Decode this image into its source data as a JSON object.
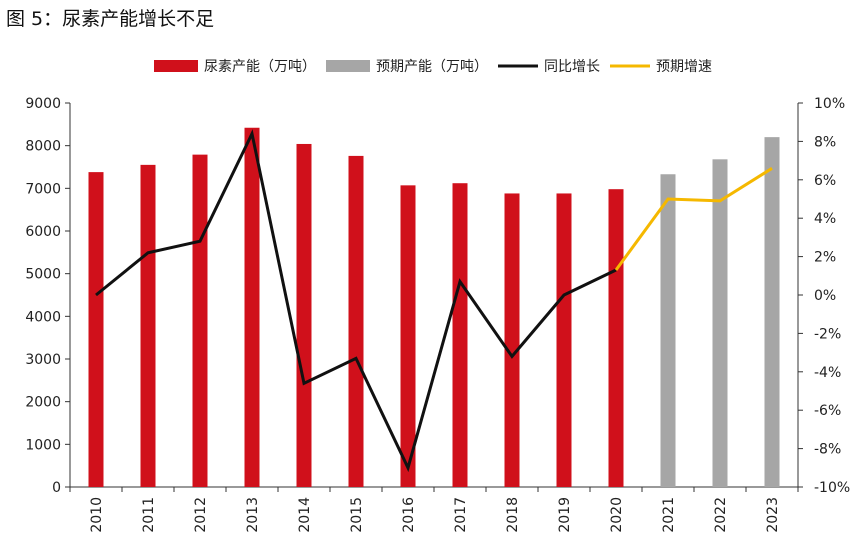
{
  "figure": {
    "title": "图 5：尿素产能增长不足"
  },
  "chart_data": {
    "type": "bar",
    "categories": [
      "2010",
      "2011",
      "2012",
      "2013",
      "2014",
      "2015",
      "2016",
      "2017",
      "2018",
      "2019",
      "2020",
      "2021",
      "2022",
      "2023"
    ],
    "series": [
      {
        "name": "尿素产能（万吨）",
        "kind": "bar",
        "axis": "left",
        "color": "#d0101b",
        "values": [
          7380,
          7550,
          7790,
          8420,
          8040,
          7760,
          7070,
          7120,
          6880,
          6880,
          6980,
          null,
          null,
          null
        ]
      },
      {
        "name": "预期产能（万吨）",
        "kind": "bar",
        "axis": "left",
        "color": "#a6a6a6",
        "values": [
          null,
          null,
          null,
          null,
          null,
          null,
          null,
          null,
          null,
          null,
          null,
          7330,
          7680,
          8200
        ]
      },
      {
        "name": "同比增长",
        "kind": "line",
        "axis": "right",
        "color": "#111111",
        "values": [
          0.0,
          2.2,
          2.8,
          8.4,
          -4.6,
          -3.3,
          -9.0,
          0.7,
          -3.2,
          0.0,
          1.3,
          null,
          null,
          null
        ]
      },
      {
        "name": "预期增速",
        "kind": "line",
        "axis": "right",
        "color": "#f5b800",
        "values": [
          null,
          null,
          null,
          null,
          null,
          null,
          null,
          null,
          null,
          null,
          1.3,
          5.0,
          4.9,
          6.6
        ]
      }
    ],
    "ylim_left": [
      0,
      9000
    ],
    "yticks_left": [
      0,
      1000,
      2000,
      3000,
      4000,
      5000,
      6000,
      7000,
      8000,
      9000
    ],
    "ylim_right": [
      -10,
      10
    ],
    "yticks_right": [
      "-10%",
      "-8%",
      "-6%",
      "-4%",
      "-2%",
      "0%",
      "2%",
      "4%",
      "6%",
      "8%",
      "10%"
    ],
    "grid": false,
    "legend_position": "top"
  }
}
